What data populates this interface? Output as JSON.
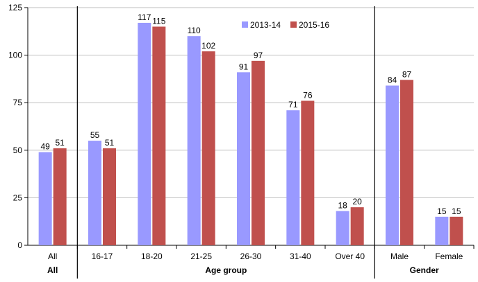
{
  "chart_data": {
    "type": "bar",
    "categories": [
      "All",
      "16-17",
      "18-20",
      "21-25",
      "26-30",
      "31-40",
      "Over 40",
      "Male",
      "Female"
    ],
    "series": [
      {
        "name": "2013-14",
        "values": [
          49,
          55,
          117,
          110,
          91,
          71,
          18,
          84,
          15
        ],
        "color": "#9999ff"
      },
      {
        "name": "2015-16",
        "values": [
          51,
          51,
          115,
          102,
          97,
          76,
          20,
          87,
          15
        ],
        "color": "#c0504d"
      }
    ],
    "groups": [
      {
        "label": "All",
        "categories": [
          "All"
        ]
      },
      {
        "label": "Age group",
        "categories": [
          "16-17",
          "18-20",
          "21-25",
          "26-30",
          "31-40",
          "Over 40"
        ]
      },
      {
        "label": "Gender",
        "categories": [
          "Male",
          "Female"
        ]
      }
    ],
    "yticks": [
      0,
      25,
      50,
      75,
      100,
      125
    ],
    "ylim": [
      0,
      125
    ],
    "title": "",
    "xlabel": "",
    "ylabel": "",
    "grid": "horizontal",
    "legend": "top-center",
    "data_labels": true
  }
}
